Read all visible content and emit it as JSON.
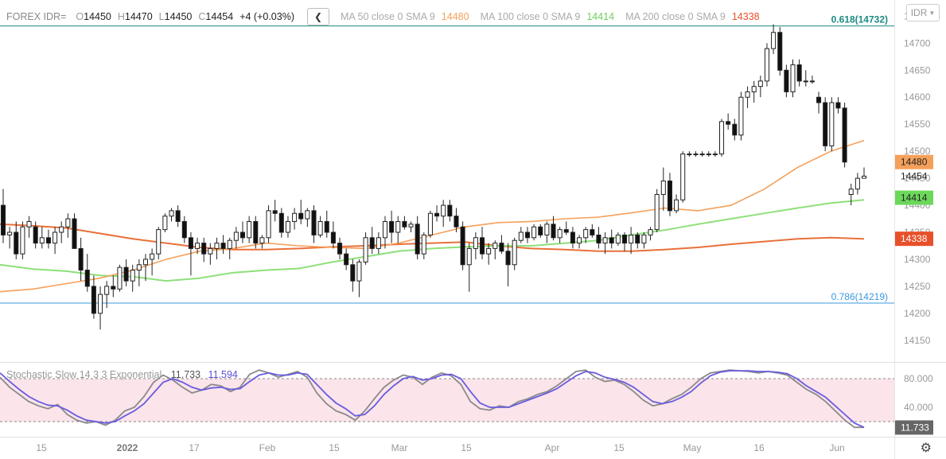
{
  "legend": {
    "symbol": "FOREX IDR=",
    "open_key": "O",
    "open": "14450",
    "high_key": "H",
    "high": "14470",
    "low_key": "L",
    "low": "14450",
    "close_key": "C",
    "close": "14454",
    "change": "+4 (+0.03%)",
    "collapse_icon": "chevron-left-icon",
    "ma50_label": "MA 50 close 0 SMA 9",
    "ma50_value": "14480",
    "ma100_label": "MA 100 close 0 SMA 9",
    "ma100_value": "14414",
    "ma200_label": "MA 200 close 0 SMA 9",
    "ma200_value": "14338"
  },
  "currency_button": "IDR",
  "settings_icon": "gear-icon",
  "colors": {
    "ma50": "#f5a05a",
    "ma100": "#8ee07a",
    "ma200": "#e8703a",
    "fib618": "#1a8a82",
    "fib786": "#3a9adf",
    "stoch_k": "#8a8a8a",
    "stoch_d": "#6a5ce0",
    "stoch_band": "#fbe4ea"
  },
  "chart_data": {
    "type": "candlestick",
    "price_axis": {
      "range": [
        14110,
        14780
      ],
      "ticks": [
        "14150",
        "14200",
        "14250",
        "14300",
        "14350",
        "14400",
        "14450",
        "14500",
        "14550",
        "14600",
        "14650",
        "14700",
        "14750"
      ]
    },
    "time_axis": [
      "15",
      "2022",
      "17",
      "Feb",
      "15",
      "Mar",
      "15",
      "Apr",
      "15",
      "May",
      "16",
      "Jun"
    ],
    "fibonacci": [
      {
        "label": "0.618(14732)",
        "value": 14732
      },
      {
        "label": "0.786(14219)",
        "value": 14219
      }
    ],
    "price_tags": {
      "ma50": "14480",
      "last": "14454",
      "ma100": "14414",
      "ma200": "14338"
    },
    "candles": [
      [
        14400,
        14430,
        14330,
        14345
      ],
      [
        14345,
        14360,
        14320,
        14350
      ],
      [
        14350,
        14370,
        14300,
        14310
      ],
      [
        14310,
        14370,
        14300,
        14360
      ],
      [
        14360,
        14380,
        14340,
        14370
      ],
      [
        14360,
        14370,
        14320,
        14330
      ],
      [
        14330,
        14360,
        14320,
        14340
      ],
      [
        14340,
        14355,
        14320,
        14330
      ],
      [
        14330,
        14360,
        14310,
        14350
      ],
      [
        14350,
        14370,
        14330,
        14360
      ],
      [
        14360,
        14385,
        14340,
        14375
      ],
      [
        14375,
        14385,
        14320,
        14320
      ],
      [
        14320,
        14340,
        14260,
        14280
      ],
      [
        14280,
        14310,
        14240,
        14250
      ],
      [
        14250,
        14270,
        14190,
        14200
      ],
      [
        14200,
        14250,
        14170,
        14235
      ],
      [
        14235,
        14260,
        14210,
        14250
      ],
      [
        14250,
        14270,
        14230,
        14245
      ],
      [
        14245,
        14290,
        14240,
        14285
      ],
      [
        14285,
        14300,
        14250,
        14260
      ],
      [
        14260,
        14290,
        14240,
        14280
      ],
      [
        14280,
        14300,
        14250,
        14290
      ],
      [
        14290,
        14310,
        14260,
        14300
      ],
      [
        14300,
        14320,
        14270,
        14310
      ],
      [
        14310,
        14360,
        14300,
        14355
      ],
      [
        14355,
        14385,
        14350,
        14380
      ],
      [
        14380,
        14395,
        14370,
        14390
      ],
      [
        14390,
        14400,
        14360,
        14370
      ],
      [
        14370,
        14380,
        14330,
        14340
      ],
      [
        14340,
        14350,
        14270,
        14320
      ],
      [
        14320,
        14340,
        14310,
        14330
      ],
      [
        14330,
        14340,
        14295,
        14310
      ],
      [
        14310,
        14330,
        14290,
        14320
      ],
      [
        14320,
        14340,
        14300,
        14330
      ],
      [
        14330,
        14345,
        14310,
        14320
      ],
      [
        14320,
        14340,
        14300,
        14335
      ],
      [
        14335,
        14360,
        14320,
        14350
      ],
      [
        14350,
        14370,
        14330,
        14340
      ],
      [
        14340,
        14380,
        14330,
        14370
      ],
      [
        14370,
        14380,
        14320,
        14330
      ],
      [
        14330,
        14345,
        14320,
        14340
      ],
      [
        14340,
        14400,
        14330,
        14390
      ],
      [
        14390,
        14410,
        14370,
        14385
      ],
      [
        14385,
        14395,
        14340,
        14350
      ],
      [
        14350,
        14380,
        14340,
        14370
      ],
      [
        14370,
        14395,
        14355,
        14385
      ],
      [
        14385,
        14410,
        14365,
        14375
      ],
      [
        14375,
        14395,
        14360,
        14390
      ],
      [
        14390,
        14400,
        14330,
        14345
      ],
      [
        14345,
        14380,
        14340,
        14370
      ],
      [
        14370,
        14390,
        14340,
        14350
      ],
      [
        14350,
        14370,
        14320,
        14330
      ],
      [
        14330,
        14340,
        14300,
        14310
      ],
      [
        14310,
        14320,
        14280,
        14290
      ],
      [
        14290,
        14300,
        14240,
        14260
      ],
      [
        14260,
        14300,
        14230,
        14295
      ],
      [
        14295,
        14350,
        14290,
        14340
      ],
      [
        14340,
        14360,
        14310,
        14320
      ],
      [
        14320,
        14350,
        14310,
        14340
      ],
      [
        14340,
        14380,
        14320,
        14370
      ],
      [
        14370,
        14390,
        14330,
        14350
      ],
      [
        14350,
        14380,
        14330,
        14370
      ],
      [
        14370,
        14380,
        14355,
        14360
      ],
      [
        14360,
        14370,
        14350,
        14365
      ],
      [
        14365,
        14380,
        14300,
        14310
      ],
      [
        14310,
        14350,
        14300,
        14345
      ],
      [
        14345,
        14390,
        14340,
        14385
      ],
      [
        14385,
        14400,
        14370,
        14380
      ],
      [
        14380,
        14410,
        14360,
        14400
      ],
      [
        14400,
        14410,
        14370,
        14380
      ],
      [
        14380,
        14395,
        14350,
        14360
      ],
      [
        14360,
        14370,
        14280,
        14290
      ],
      [
        14290,
        14330,
        14240,
        14320
      ],
      [
        14320,
        14350,
        14300,
        14340
      ],
      [
        14340,
        14360,
        14300,
        14310
      ],
      [
        14310,
        14330,
        14290,
        14320
      ],
      [
        14320,
        14335,
        14300,
        14330
      ],
      [
        14330,
        14345,
        14310,
        14315
      ],
      [
        14315,
        14330,
        14250,
        14290
      ],
      [
        14290,
        14340,
        14280,
        14335
      ],
      [
        14335,
        14360,
        14330,
        14350
      ],
      [
        14350,
        14360,
        14330,
        14340
      ],
      [
        14340,
        14365,
        14335,
        14360
      ],
      [
        14360,
        14365,
        14340,
        14345
      ],
      [
        14345,
        14370,
        14330,
        14365
      ],
      [
        14365,
        14380,
        14335,
        14340
      ],
      [
        14340,
        14360,
        14330,
        14355
      ],
      [
        14355,
        14370,
        14345,
        14350
      ],
      [
        14350,
        14360,
        14320,
        14330
      ],
      [
        14330,
        14345,
        14320,
        14340
      ],
      [
        14340,
        14360,
        14330,
        14355
      ],
      [
        14355,
        14365,
        14340,
        14345
      ],
      [
        14345,
        14360,
        14320,
        14330
      ],
      [
        14330,
        14350,
        14310,
        14340
      ],
      [
        14340,
        14355,
        14320,
        14330
      ],
      [
        14330,
        14350,
        14325,
        14345
      ],
      [
        14345,
        14350,
        14315,
        14330
      ],
      [
        14330,
        14360,
        14310,
        14345
      ],
      [
        14345,
        14350,
        14320,
        14330
      ],
      [
        14330,
        14350,
        14320,
        14345
      ],
      [
        14345,
        14360,
        14335,
        14355
      ],
      [
        14355,
        14430,
        14350,
        14420
      ],
      [
        14420,
        14470,
        14390,
        14445
      ],
      [
        14445,
        14460,
        14380,
        14390
      ],
      [
        14390,
        14420,
        14385,
        14410
      ],
      [
        14410,
        14500,
        14405,
        14495
      ],
      [
        14495,
        14500,
        14490,
        14495
      ],
      [
        14495,
        14500,
        14490,
        14495
      ],
      [
        14495,
        14500,
        14490,
        14495
      ],
      [
        14495,
        14500,
        14490,
        14495
      ],
      [
        14495,
        14500,
        14490,
        14495
      ],
      [
        14495,
        14560,
        14490,
        14555
      ],
      [
        14555,
        14570,
        14540,
        14550
      ],
      [
        14550,
        14560,
        14520,
        14530
      ],
      [
        14530,
        14610,
        14520,
        14600
      ],
      [
        14600,
        14620,
        14580,
        14610
      ],
      [
        14610,
        14630,
        14590,
        14620
      ],
      [
        14620,
        14640,
        14600,
        14630
      ],
      [
        14630,
        14700,
        14620,
        14690
      ],
      [
        14690,
        14735,
        14680,
        14720
      ],
      [
        14720,
        14730,
        14640,
        14650
      ],
      [
        14650,
        14660,
        14600,
        14610
      ],
      [
        14610,
        14670,
        14600,
        14660
      ],
      [
        14660,
        14670,
        14620,
        14630
      ],
      [
        14630,
        14650,
        14620,
        14630
      ],
      [
        14630,
        14640,
        14625,
        14630
      ],
      [
        14600,
        14610,
        14570,
        14590
      ],
      [
        14590,
        14600,
        14500,
        14510
      ],
      [
        14510,
        14600,
        14500,
        14590
      ],
      [
        14590,
        14600,
        14570,
        14580
      ],
      [
        14580,
        14590,
        14470,
        14480
      ],
      [
        14420,
        14440,
        14400,
        14430
      ],
      [
        14430,
        14460,
        14420,
        14450
      ],
      [
        14450,
        14470,
        14450,
        14454
      ]
    ],
    "ma50": [
      14240,
      14245,
      14255,
      14265,
      14280,
      14300,
      14315,
      14320,
      14330,
      14325,
      14322,
      14320,
      14330,
      14345,
      14360,
      14368,
      14370,
      14375,
      14378,
      14386,
      14395,
      14390,
      14400,
      14430,
      14470,
      14500,
      14520
    ],
    "ma100": [
      14290,
      14282,
      14278,
      14270,
      14268,
      14260,
      14265,
      14275,
      14280,
      14283,
      14295,
      14305,
      14315,
      14320,
      14323,
      14325,
      14325,
      14330,
      14335,
      14345,
      14354,
      14365,
      14375,
      14385,
      14395,
      14404,
      14410
    ],
    "ma200": [
      14365,
      14362,
      14358,
      14348,
      14338,
      14330,
      14322,
      14318,
      14318,
      14320,
      14323,
      14325,
      14328,
      14330,
      14332,
      14325,
      14320,
      14318,
      14315,
      14315,
      14318,
      14322,
      14328,
      14333,
      14338,
      14340,
      14338
    ],
    "stochastic": {
      "title": "Stochastic Slow 14 3 3 Exponential",
      "k_value": "11.733",
      "d_value": "11.594",
      "range": [
        0,
        100
      ],
      "levels": [
        80,
        20
      ],
      "ticks": [
        "80.000",
        "40.000"
      ],
      "last_tag": "11.733",
      "k": [
        82,
        68,
        58,
        48,
        42,
        38,
        44,
        30,
        22,
        18,
        20,
        15,
        22,
        35,
        40,
        55,
        75,
        85,
        78,
        68,
        60,
        64,
        72,
        70,
        62,
        68,
        86,
        92,
        88,
        82,
        86,
        90,
        82,
        60,
        45,
        35,
        30,
        22,
        35,
        52,
        68,
        78,
        85,
        82,
        72,
        82,
        88,
        84,
        72,
        48,
        38,
        36,
        42,
        40,
        48,
        52,
        58,
        62,
        70,
        80,
        90,
        92,
        82,
        76,
        78,
        72,
        62,
        50,
        42,
        45,
        52,
        58,
        68,
        80,
        88,
        90,
        92,
        91,
        90,
        88,
        90,
        88,
        85,
        75,
        65,
        58,
        48,
        35,
        22,
        12,
        12
      ],
      "d": [
        88,
        76,
        65,
        55,
        48,
        43,
        42,
        36,
        28,
        22,
        20,
        18,
        20,
        28,
        35,
        45,
        60,
        75,
        80,
        75,
        68,
        64,
        67,
        68,
        65,
        66,
        76,
        85,
        88,
        85,
        85,
        88,
        86,
        72,
        58,
        46,
        38,
        28,
        30,
        42,
        58,
        70,
        80,
        83,
        78,
        80,
        85,
        86,
        80,
        62,
        46,
        40,
        40,
        40,
        45,
        50,
        55,
        60,
        66,
        75,
        84,
        90,
        88,
        82,
        79,
        75,
        68,
        58,
        48,
        45,
        48,
        54,
        62,
        74,
        84,
        89,
        91,
        91,
        91,
        90,
        90,
        89,
        87,
        80,
        70,
        62,
        54,
        42,
        30,
        18,
        12
      ]
    }
  }
}
